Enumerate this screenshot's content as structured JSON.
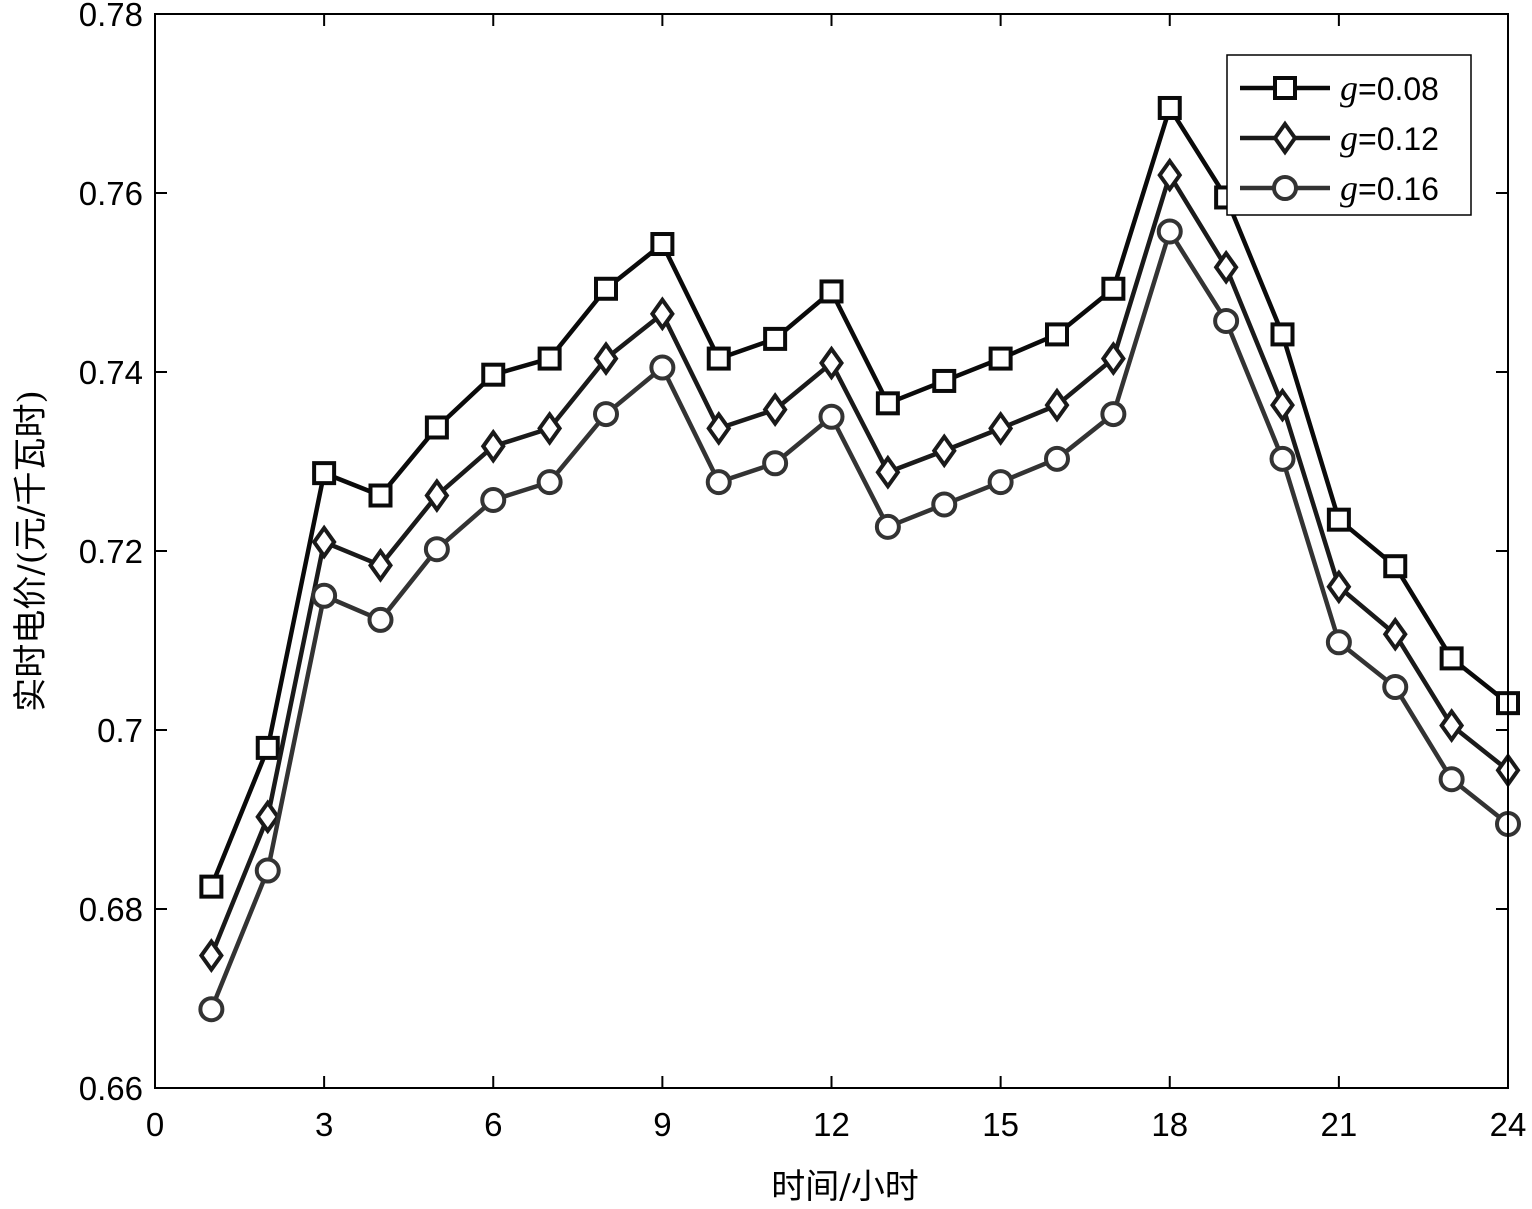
{
  "chart_data": {
    "type": "line",
    "xlabel": "时间/小时",
    "ylabel": "实时电价/(元/千瓦时)",
    "xlim": [
      0,
      24
    ],
    "ylim": [
      0.66,
      0.78
    ],
    "xticks": [
      0,
      3,
      6,
      9,
      12,
      15,
      18,
      21,
      24
    ],
    "yticks": [
      0.66,
      0.68,
      0.7,
      0.72,
      0.74,
      0.76,
      0.78
    ],
    "xtick_labels": [
      "0",
      "3",
      "6",
      "9",
      "12",
      "15",
      "18",
      "21",
      "24"
    ],
    "ytick_labels": [
      "0.66",
      "0.68",
      "0.7",
      "0.72",
      "0.74",
      "0.76",
      "0.78"
    ],
    "grid": false,
    "legend_position": "top-right",
    "x": [
      1,
      2,
      3,
      4,
      5,
      6,
      7,
      8,
      9,
      10,
      11,
      12,
      13,
      14,
      15,
      16,
      17,
      18,
      19,
      20,
      21,
      22,
      23,
      24
    ],
    "series": [
      {
        "name": "g=0.08",
        "name_var": "g",
        "name_rest": "=0.08",
        "marker": "square",
        "color": "#0a0a0a",
        "values": [
          0.6825,
          0.698,
          0.7287,
          0.7262,
          0.7338,
          0.7397,
          0.7415,
          0.7493,
          0.7543,
          0.7415,
          0.7437,
          0.749,
          0.7365,
          0.739,
          0.7415,
          0.7442,
          0.7493,
          0.7695,
          0.7595,
          0.7442,
          0.7235,
          0.7183,
          0.708,
          0.703
        ]
      },
      {
        "name": "g=0.12",
        "name_var": "g",
        "name_rest": "=0.12",
        "marker": "diamond",
        "color": "#1a1a1a",
        "values": [
          0.6748,
          0.6903,
          0.721,
          0.7184,
          0.7262,
          0.7317,
          0.7337,
          0.7415,
          0.7465,
          0.7337,
          0.7358,
          0.741,
          0.7288,
          0.7312,
          0.7337,
          0.7363,
          0.7415,
          0.762,
          0.7517,
          0.7363,
          0.716,
          0.7107,
          0.7005,
          0.6955
        ]
      },
      {
        "name": "g=0.16",
        "name_var": "g",
        "name_rest": "=0.16",
        "marker": "circle",
        "color": "#333333",
        "values": [
          0.6688,
          0.6843,
          0.715,
          0.7123,
          0.7202,
          0.7257,
          0.7277,
          0.7353,
          0.7405,
          0.7277,
          0.7298,
          0.735,
          0.7227,
          0.7252,
          0.7277,
          0.7303,
          0.7353,
          0.7557,
          0.7457,
          0.7303,
          0.7098,
          0.7048,
          0.6945,
          0.6895
        ]
      }
    ]
  }
}
